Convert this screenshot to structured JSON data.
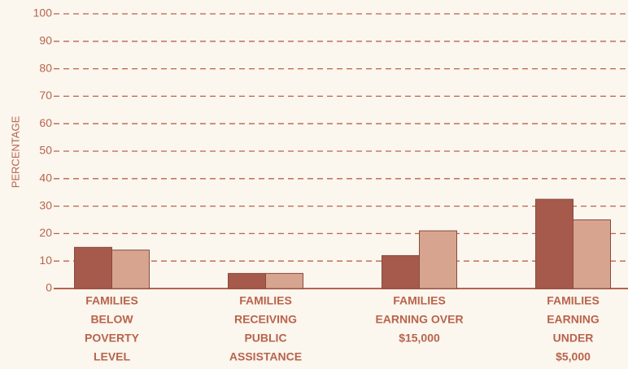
{
  "chart_data": {
    "type": "bar",
    "ylabel": "PERCENTAGE",
    "categories": [
      [
        "FAMILIES",
        "BELOW",
        "POVERTY",
        "LEVEL"
      ],
      [
        "FAMILIES",
        "RECEIVING",
        "PUBLIC",
        "ASSISTANCE"
      ],
      [
        "FAMILIES",
        "EARNING OVER",
        "$15,000"
      ],
      [
        "FAMILIES",
        "EARNING",
        "UNDER",
        "$5,000"
      ]
    ],
    "series": [
      {
        "color": "#a65a4c",
        "values": [
          15,
          5.5,
          12,
          32.5
        ]
      },
      {
        "color": "#d7a58f",
        "values": [
          14,
          5.5,
          21,
          25
        ]
      }
    ],
    "ylim": [
      0,
      100
    ],
    "yticks": [
      0,
      10,
      20,
      30,
      40,
      50,
      60,
      70,
      80,
      90,
      100
    ],
    "grid": true
  }
}
